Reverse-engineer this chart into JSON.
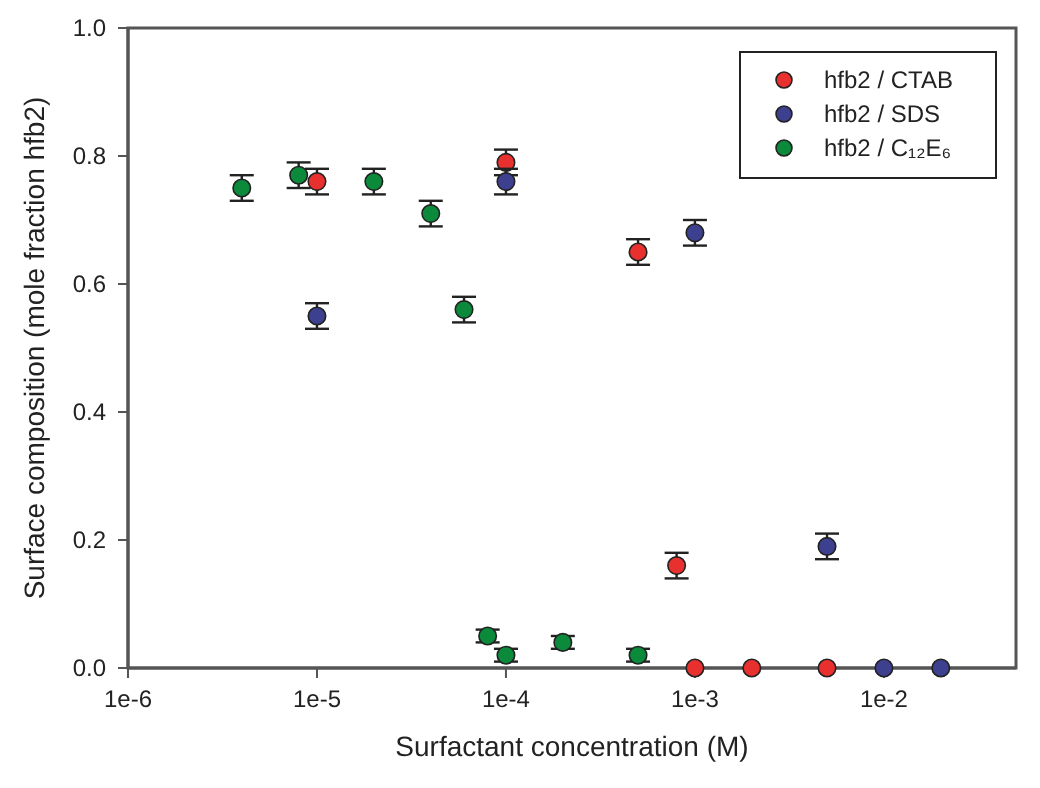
{
  "chart_data": {
    "type": "scatter",
    "xlabel": "Surfactant concentration (M)",
    "ylabel": "Surface composition (mole fraction hfb2)",
    "log": "x",
    "xlim": [
      1e-06,
      0.05
    ],
    "xticks": [
      {
        "value": 1e-06,
        "label": "1e-6"
      },
      {
        "value": 1e-05,
        "label": "1e-5"
      },
      {
        "value": 0.0001,
        "label": "1e-4"
      },
      {
        "value": 0.001,
        "label": "1e-3"
      },
      {
        "value": 0.01,
        "label": "1e-2"
      }
    ],
    "ylim": [
      0,
      1
    ],
    "yticks": [
      {
        "value": 0,
        "label": "0.0"
      },
      {
        "value": 0.2,
        "label": "0.2"
      },
      {
        "value": 0.4,
        "label": "0.4"
      },
      {
        "value": 0.6,
        "label": "0.6"
      },
      {
        "value": 0.8,
        "label": "0.8"
      },
      {
        "value": 1,
        "label": "1.0"
      }
    ],
    "marker": "circle",
    "legend": "top right",
    "grid": false,
    "series": [
      {
        "name": "hfb2 / CTAB",
        "color": "#e8312f",
        "x": [
          1e-05,
          0.0001,
          0.0005,
          0.0008,
          0.001,
          0.002,
          0.005
        ],
        "values": [
          0.76,
          0.79,
          0.65,
          0.16,
          0,
          0,
          0
        ],
        "errors": [
          0.02,
          0.02,
          0.02,
          0.02,
          null,
          null,
          null
        ]
      },
      {
        "name": "hfb2 / SDS",
        "color": "#3d3f8f",
        "x": [
          1e-05,
          0.0001,
          0.001,
          0.005,
          0.01,
          0.02
        ],
        "values": [
          0.55,
          0.76,
          0.68,
          0.19,
          0,
          0
        ],
        "errors": [
          0.02,
          0.02,
          0.02,
          0.02,
          null,
          null
        ]
      },
      {
        "name": "hfb2 / C₁₂E₆",
        "color": "#0a8a3a",
        "x": [
          4e-06,
          8e-06,
          2e-05,
          4e-05,
          6e-05,
          8e-05,
          0.0001,
          0.0002,
          0.0005
        ],
        "values": [
          0.75,
          0.77,
          0.76,
          0.71,
          0.56,
          0.05,
          0.02,
          0.04,
          0.02
        ],
        "errors": [
          0.02,
          0.02,
          0.02,
          0.02,
          0.02,
          0.01,
          0.01,
          0.01,
          0.01
        ]
      }
    ]
  }
}
